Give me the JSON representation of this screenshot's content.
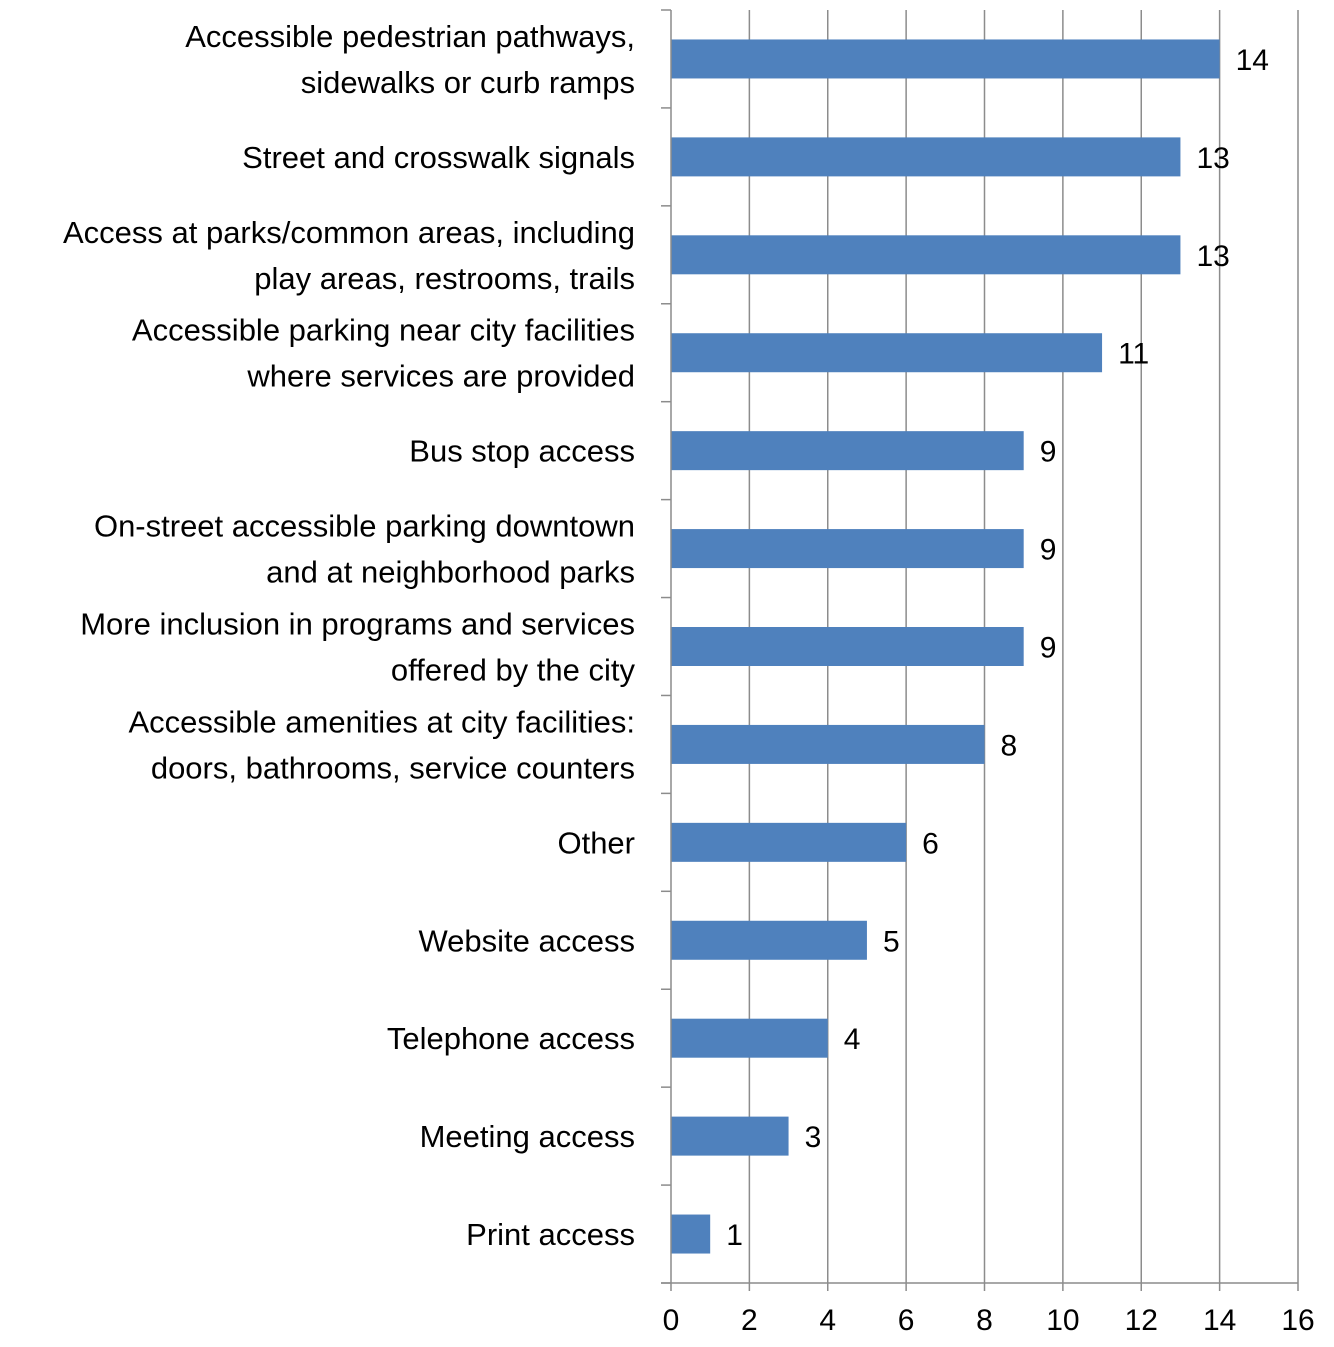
{
  "chart_data": {
    "type": "bar",
    "orientation": "horizontal",
    "title": "",
    "xlabel": "",
    "ylabel": "",
    "categories": [
      [
        "Accessible pedestrian pathways,",
        "sidewalks or curb ramps"
      ],
      [
        "Street and crosswalk signals"
      ],
      [
        "Access at parks/common areas, including",
        "play areas, restrooms, trails"
      ],
      [
        "Accessible parking near city facilities",
        "where services are provided"
      ],
      [
        "Bus stop access"
      ],
      [
        "On-street accessible parking downtown",
        "and at neighborhood parks"
      ],
      [
        "More inclusion in programs and services",
        "offered by the city"
      ],
      [
        "Accessible amenities at city facilities:",
        "doors, bathrooms, service counters"
      ],
      [
        "Other"
      ],
      [
        "Website access"
      ],
      [
        "Telephone access"
      ],
      [
        "Meeting access"
      ],
      [
        "Print access"
      ]
    ],
    "values": [
      14,
      13,
      13,
      11,
      9,
      9,
      9,
      8,
      6,
      5,
      4,
      3,
      1
    ],
    "xlim": [
      0,
      16
    ],
    "xticks": [
      0,
      2,
      4,
      6,
      8,
      10,
      12,
      14,
      16
    ],
    "grid": "vertical",
    "legend": "none",
    "bar_color": "#4f81bd",
    "grid_color": "#8c8c8c"
  }
}
